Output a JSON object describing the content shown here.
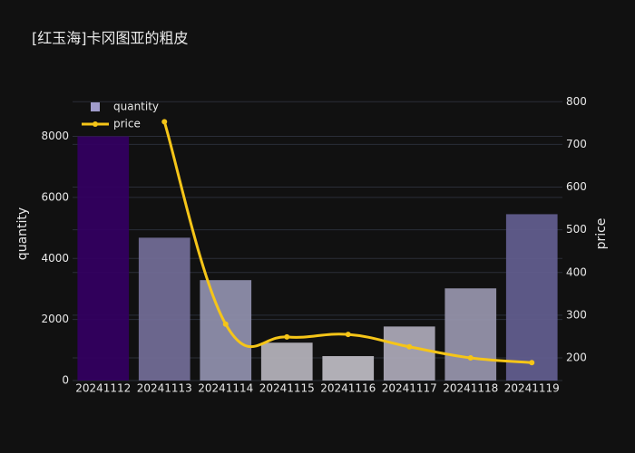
{
  "chart_data": {
    "type": "bar_line",
    "title": "[红玉海]卡冈图亚的粗皮",
    "categories": [
      "20241112",
      "20241113",
      "20241114",
      "20241115",
      "20241116",
      "20241117",
      "20241118",
      "20241119"
    ],
    "series": [
      {
        "name": "quantity",
        "type": "bar",
        "axis": "y",
        "color": "#a09ccb",
        "colors": [
          "#330060",
          "#716b95",
          "#8e8eab",
          "#b2b0b8",
          "#bab8c0",
          "#aaa6b5",
          "#9592aa",
          "#615d8d"
        ],
        "values": [
          8000,
          4680,
          3290,
          1240,
          800,
          1770,
          3020,
          5450
        ]
      },
      {
        "name": "price",
        "type": "line",
        "axis": "y2",
        "color": "#f5c518",
        "values": [
          null,
          753,
          279,
          249,
          255,
          226,
          200,
          189
        ]
      }
    ],
    "ylabel": "quantity",
    "y2label": "price",
    "ylim": [
      0,
      9500
    ],
    "yticks": [
      0,
      2000,
      4000,
      6000,
      8000
    ],
    "y2lim": [
      147,
      826
    ],
    "y2ticks": [
      200,
      300,
      400,
      500,
      600,
      700,
      800
    ],
    "grid": true,
    "legend": "top-left"
  }
}
